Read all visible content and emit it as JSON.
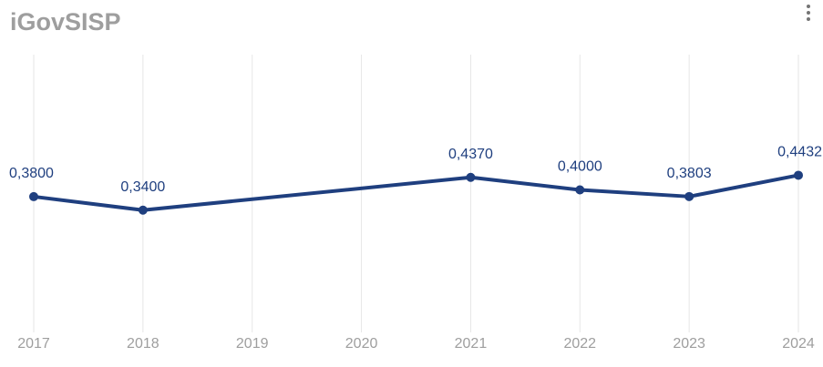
{
  "header": {
    "title": "iGovSISP",
    "menu_icon": "more-vert-icon"
  },
  "colors": {
    "series": "#1f3f7f",
    "grid": "#e6e6e6",
    "axis_text": "#9e9e9e",
    "title": "#9e9e9e"
  },
  "chart_data": {
    "type": "line",
    "title": "iGovSISP",
    "categories": [
      "2017",
      "2018",
      "2019",
      "2020",
      "2021",
      "2022",
      "2023",
      "2024"
    ],
    "series": [
      {
        "values": [
          0.38,
          0.34,
          null,
          null,
          0.437,
          0.4,
          0.3803,
          0.4432
        ],
        "labels": [
          "0,3800",
          "0,3400",
          "",
          "",
          "0,4370",
          "0,4000",
          "0,3803",
          "0,4432"
        ]
      }
    ],
    "ylim": [
      0.0,
      0.8
    ],
    "grid": "vertical",
    "legend": "none"
  }
}
